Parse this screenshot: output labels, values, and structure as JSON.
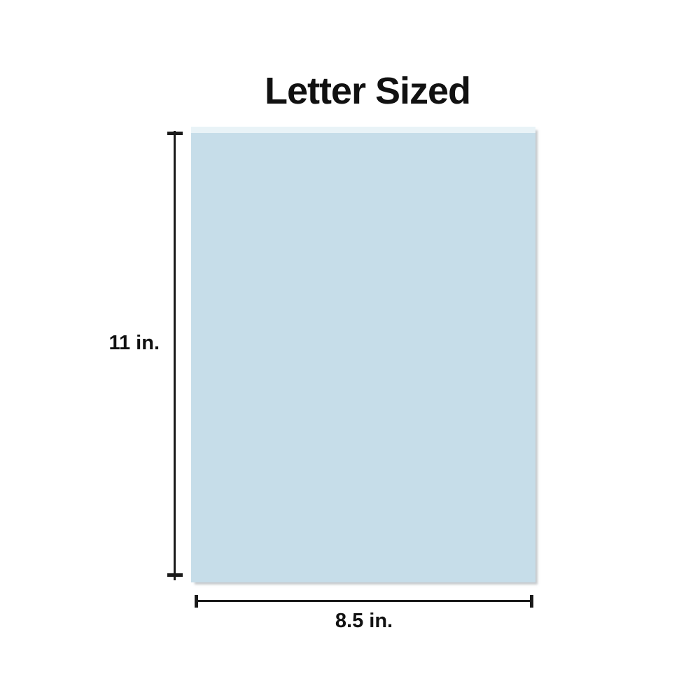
{
  "title": "Letter Sized",
  "dimensions": {
    "height_label": "11 in.",
    "width_label": "8.5 in."
  },
  "paper": {
    "name": "letter-sized-paper-sheet",
    "fill_color": "#c6dde9",
    "top_highlight_color": "#e9f3f7",
    "shadow_color": "#969ba0"
  },
  "colors": {
    "background": "#ffffff",
    "text": "#111111",
    "dimension_lines": "#1a1a1a"
  }
}
